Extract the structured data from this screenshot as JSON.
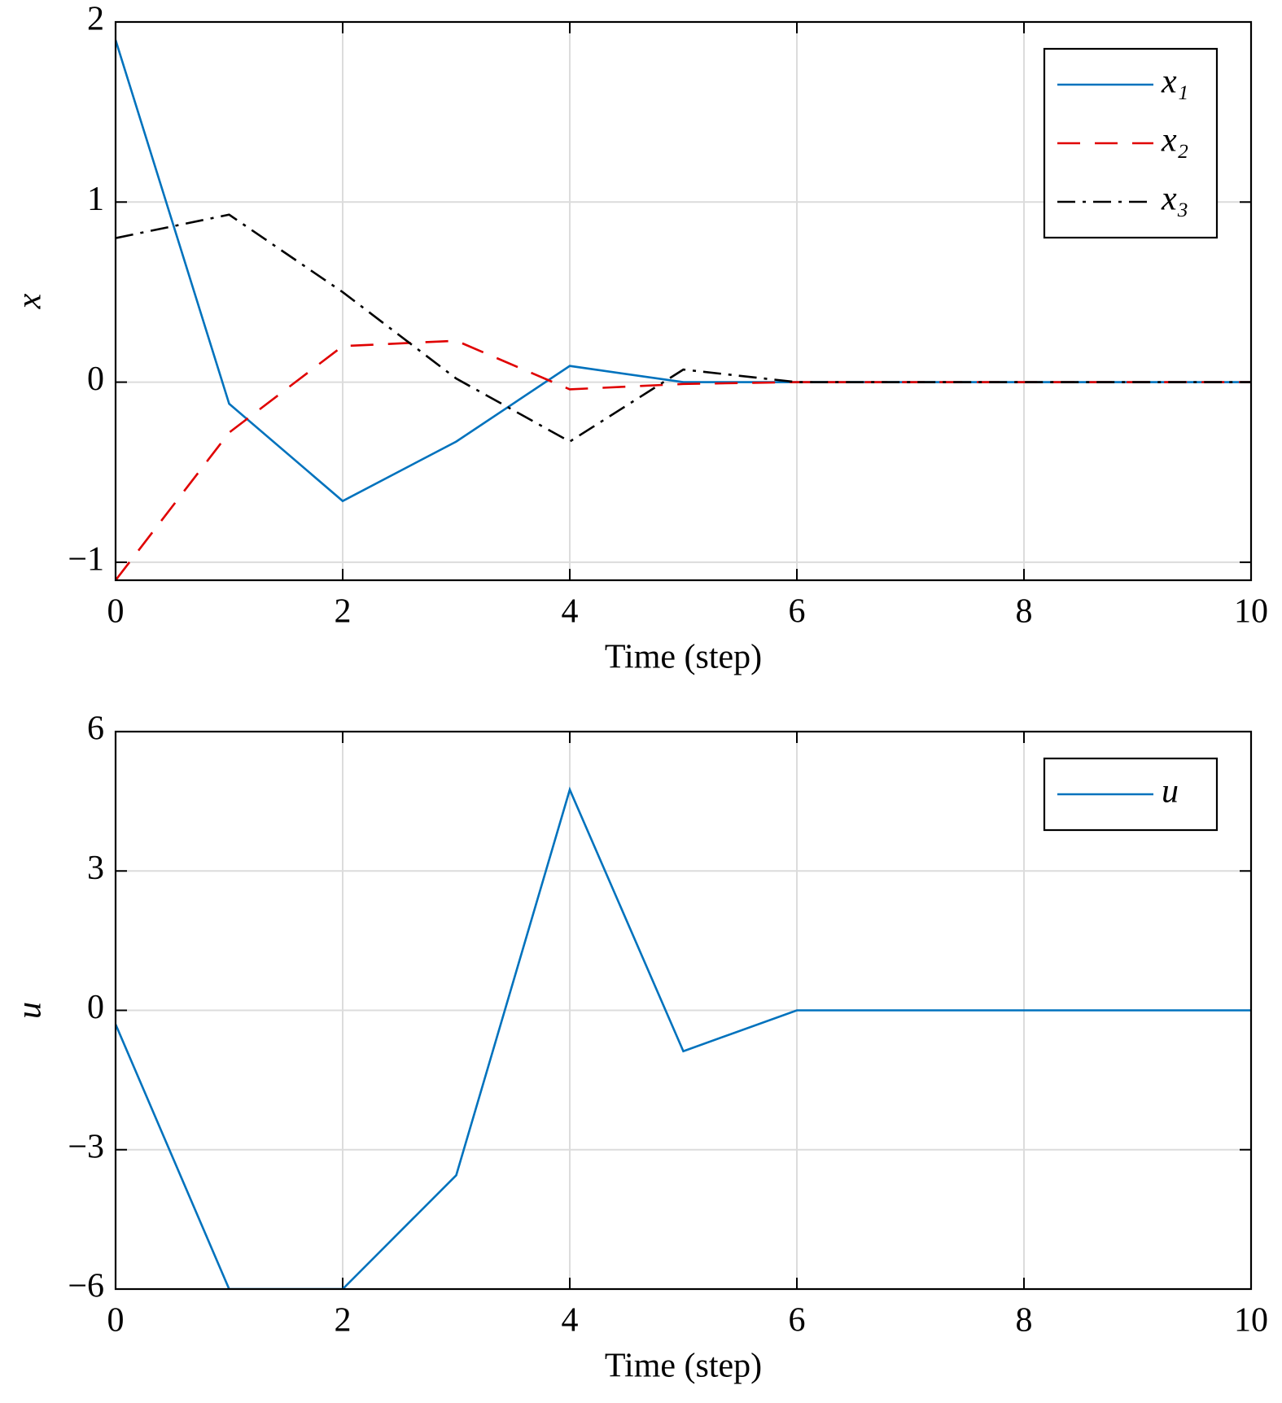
{
  "chart_data": [
    {
      "type": "line",
      "x": [
        0,
        1,
        2,
        3,
        4,
        5,
        6,
        7,
        8,
        9,
        10
      ],
      "series": [
        {
          "name": "x₁",
          "color": "#0072bd",
          "dash": "solid",
          "values": [
            1.9,
            -0.12,
            -0.66,
            -0.33,
            0.09,
            0.0,
            0,
            0,
            0,
            0,
            0
          ]
        },
        {
          "name": "x₂",
          "color": "#e00000",
          "dash": "dashed",
          "values": [
            -1.1,
            -0.28,
            0.2,
            0.23,
            -0.04,
            -0.01,
            0,
            0,
            0,
            0,
            0
          ]
        },
        {
          "name": "x₃",
          "color": "#000000",
          "dash": "dashdot",
          "values": [
            0.8,
            0.93,
            0.5,
            0.02,
            -0.33,
            0.07,
            0,
            0,
            0,
            0,
            0
          ]
        }
      ],
      "xlim": [
        0,
        10
      ],
      "xticks": [
        0,
        2,
        4,
        6,
        8,
        10
      ],
      "ylim": [
        -1.1,
        2
      ],
      "yticks": [
        {
          "value": -1,
          "label": "−1"
        },
        0,
        1,
        2
      ],
      "xlabel": "Time (step)",
      "ylabel": "x",
      "grid": true,
      "legend": "upper right"
    },
    {
      "type": "line",
      "x": [
        0,
        1,
        2,
        3,
        4,
        5,
        6,
        7,
        8,
        9,
        10
      ],
      "series": [
        {
          "name": "u",
          "color": "#0072bd",
          "dash": "solid",
          "values": [
            -0.3,
            -6,
            -6,
            -3.55,
            4.75,
            -0.88,
            0,
            0,
            0,
            0,
            0
          ]
        }
      ],
      "xlim": [
        0,
        10
      ],
      "xticks": [
        0,
        2,
        4,
        6,
        8,
        10
      ],
      "ylim": [
        -6,
        6
      ],
      "yticks": [
        {
          "value": -6,
          "label": "−6"
        },
        {
          "value": -3,
          "label": "−3"
        },
        0,
        3,
        6
      ],
      "xlabel": "Time (step)",
      "ylabel": "u",
      "grid": true,
      "legend": "upper right"
    }
  ]
}
